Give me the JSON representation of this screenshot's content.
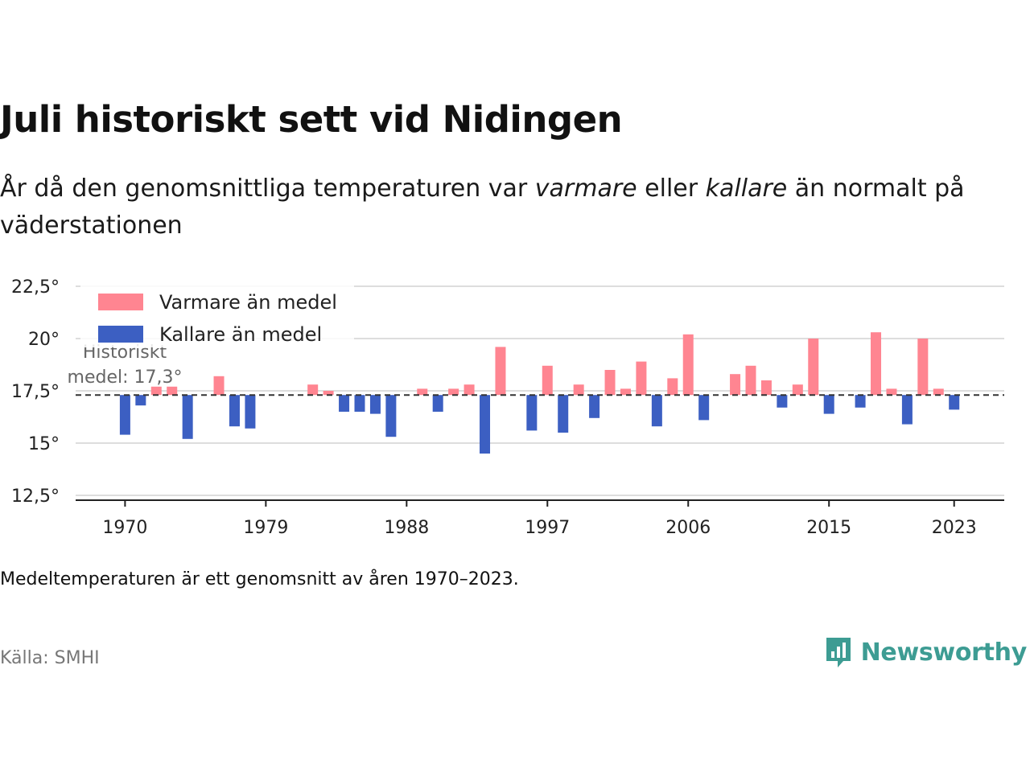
{
  "title": "Juli historiskt sett vid Nidingen",
  "subtitle": {
    "p1": "År då den genomsnittliga temperaturen var ",
    "warm": "varmare",
    "p2": " eller ",
    "cold": "kallare",
    "p3": " än normalt på väderstationen"
  },
  "note": "Medeltemperaturen är ett genomsnitt av åren 1970–2023.",
  "source": "Källa: SMHI",
  "brand": "Newsworthy",
  "colors": {
    "warm": "#ff8591",
    "cold": "#3c5fc2",
    "brand": "#3d9c93",
    "grid": "#dddddd"
  },
  "chart_data": {
    "type": "bar",
    "baseline": 17.3,
    "baseline_label": [
      "Historiskt",
      "medel: 17,3°"
    ],
    "ylim": [
      12.5,
      22.5
    ],
    "y_ticks": [
      {
        "value": 12.5,
        "label": "12,5°"
      },
      {
        "value": 15,
        "label": "15°"
      },
      {
        "value": 17.5,
        "label": "17,5°"
      },
      {
        "value": 20,
        "label": "20°"
      },
      {
        "value": 22.5,
        "label": "22,5°"
      }
    ],
    "x_ticks": [
      1970,
      1979,
      1988,
      1997,
      2006,
      2015,
      2023
    ],
    "legend": {
      "position": "top-left",
      "warm": "Varmare än medel",
      "cold": "Kallare än medel"
    },
    "years": [
      1970,
      1971,
      1972,
      1973,
      1974,
      1975,
      1976,
      1977,
      1978,
      1979,
      1980,
      1981,
      1982,
      1983,
      1984,
      1985,
      1986,
      1987,
      1988,
      1989,
      1990,
      1991,
      1992,
      1993,
      1994,
      1995,
      1996,
      1997,
      1998,
      1999,
      2000,
      2001,
      2002,
      2003,
      2004,
      2005,
      2006,
      2007,
      2008,
      2009,
      2010,
      2011,
      2012,
      2013,
      2014,
      2015,
      2016,
      2017,
      2018,
      2019,
      2020,
      2021,
      2022,
      2023
    ],
    "values": [
      15.4,
      16.8,
      17.7,
      17.7,
      15.2,
      null,
      18.2,
      15.8,
      15.7,
      null,
      null,
      null,
      17.8,
      17.5,
      16.5,
      16.5,
      16.4,
      15.3,
      null,
      17.6,
      16.5,
      17.6,
      17.8,
      14.5,
      19.6,
      null,
      15.6,
      18.7,
      15.5,
      17.8,
      16.2,
      18.5,
      17.6,
      18.9,
      15.8,
      18.1,
      20.2,
      16.1,
      null,
      18.3,
      18.7,
      18.0,
      16.7,
      17.8,
      20.0,
      16.4,
      null,
      16.7,
      20.3,
      17.6,
      15.9,
      20.0,
      17.6,
      16.6
    ]
  }
}
